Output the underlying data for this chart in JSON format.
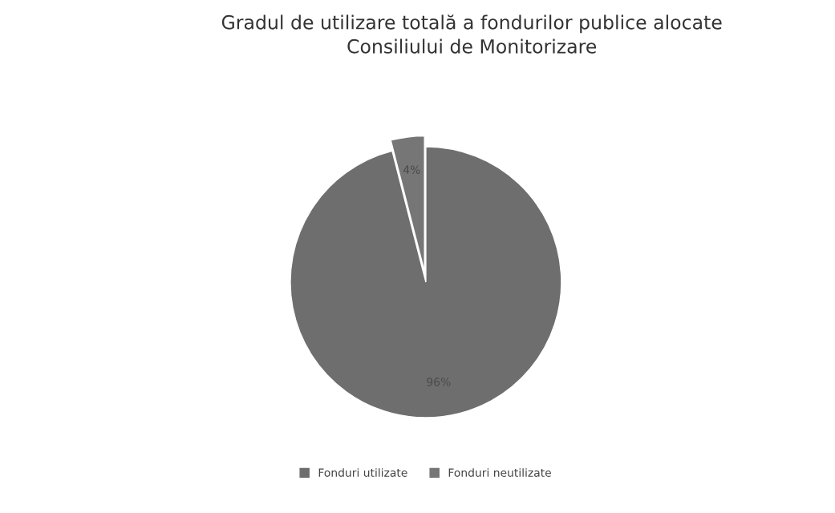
{
  "chart_data": {
    "type": "pie",
    "title": "Gradul de utilizare totală a fondurilor publice alocate\nConsiliului de Monitorizare",
    "categories": [
      "Fonduri utilizate",
      "Fonduri neutilizate"
    ],
    "values": [
      96,
      4
    ],
    "colors": [
      "#6e6e6e",
      "#767676"
    ],
    "value_labels": [
      "96%",
      "4%"
    ],
    "legend": "bottom"
  }
}
